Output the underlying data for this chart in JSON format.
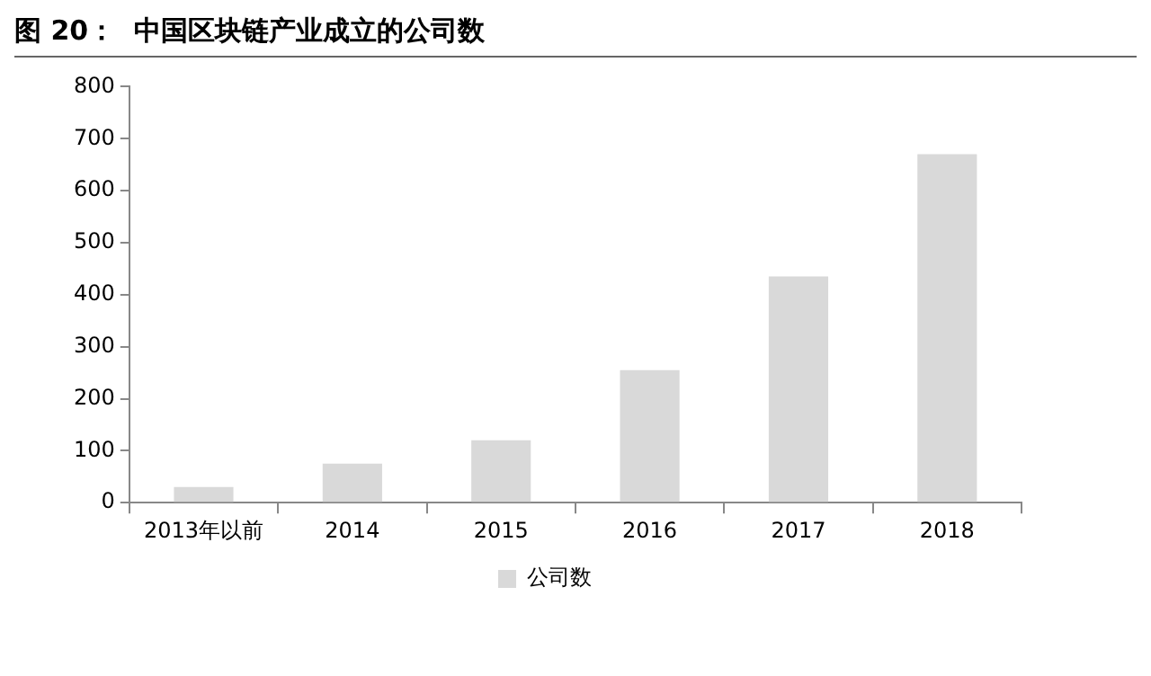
{
  "chart_data": {
    "type": "bar",
    "title": "图 20：  中国区块链产业成立的公司数",
    "categories": [
      "2013年以前",
      "2014",
      "2015",
      "2016",
      "2017",
      "2018"
    ],
    "series": [
      {
        "name": "公司数",
        "color": "#d9d9d9",
        "values": [
          30,
          75,
          120,
          255,
          435,
          670
        ]
      }
    ],
    "ylim": [
      0,
      800
    ],
    "yticks": [
      0,
      100,
      200,
      300,
      400,
      500,
      600,
      700,
      800
    ],
    "grid": false,
    "legend": "bottom"
  }
}
